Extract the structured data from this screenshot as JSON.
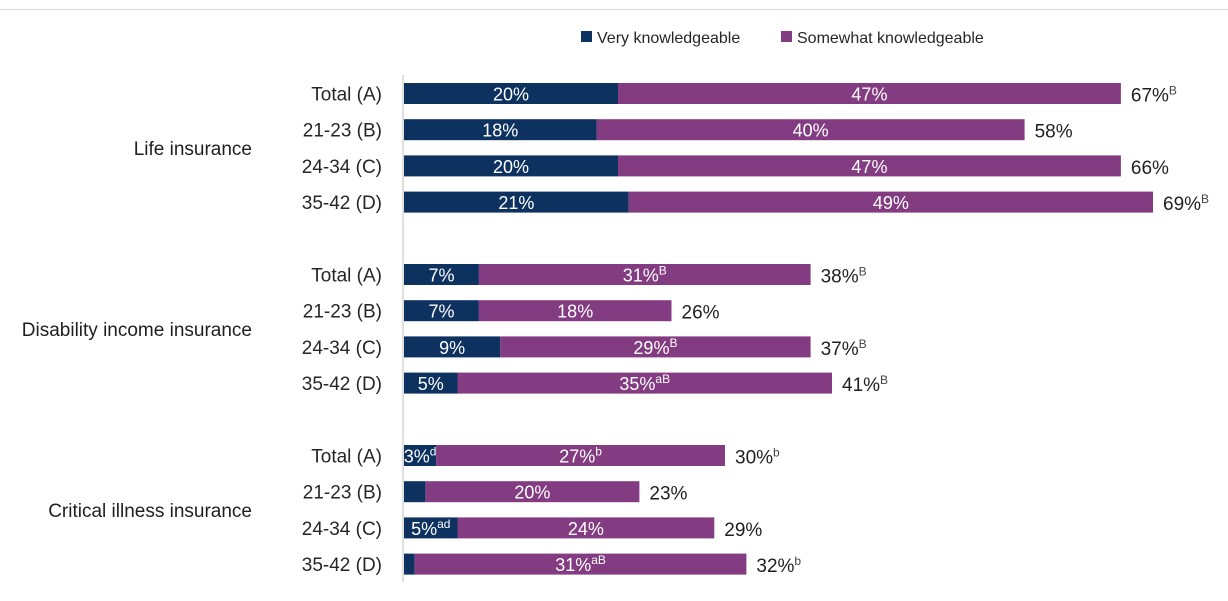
{
  "chart_data": {
    "type": "bar",
    "orientation": "horizontal",
    "stacked": true,
    "title": "",
    "xlabel": "",
    "ylabel": "",
    "xlim": [
      0,
      100
    ],
    "grid": false,
    "legend_position": "top-right",
    "colors": {
      "very": "#0d3260",
      "somewhat": "#833c82"
    },
    "legend": [
      "Very knowledgeable",
      "Somewhat knowledgeable"
    ],
    "groups": [
      {
        "label": "Life insurance",
        "rows": [
          {
            "label": "Total (A)",
            "very": 20,
            "very_label": "20%",
            "very_sup": "",
            "somewhat": 47,
            "somewhat_label": "47%",
            "somewhat_sup": "",
            "total_label": "67%",
            "total_sup": "B"
          },
          {
            "label": "21-23 (B)",
            "very": 18,
            "very_label": "18%",
            "very_sup": "",
            "somewhat": 40,
            "somewhat_label": "40%",
            "somewhat_sup": "",
            "total_label": "58%",
            "total_sup": ""
          },
          {
            "label": "24-34 (C)",
            "very": 20,
            "very_label": "20%",
            "very_sup": "",
            "somewhat": 47,
            "somewhat_label": "47%",
            "somewhat_sup": "",
            "total_label": "66%",
            "total_sup": ""
          },
          {
            "label": "35-42 (D)",
            "very": 21,
            "very_label": "21%",
            "very_sup": "",
            "somewhat": 49,
            "somewhat_label": "49%",
            "somewhat_sup": "",
            "total_label": "69%",
            "total_sup": "B"
          }
        ]
      },
      {
        "label": "Disability income insurance",
        "rows": [
          {
            "label": "Total (A)",
            "very": 7,
            "very_label": "7%",
            "very_sup": "",
            "somewhat": 31,
            "somewhat_label": "31%",
            "somewhat_sup": "B",
            "total_label": "38%",
            "total_sup": "B"
          },
          {
            "label": "21-23 (B)",
            "very": 7,
            "very_label": "7%",
            "very_sup": "",
            "somewhat": 18,
            "somewhat_label": "18%",
            "somewhat_sup": "",
            "total_label": "26%",
            "total_sup": ""
          },
          {
            "label": "24-34 (C)",
            "very": 9,
            "very_label": "9%",
            "very_sup": "",
            "somewhat": 29,
            "somewhat_label": "29%",
            "somewhat_sup": "B",
            "total_label": "37%",
            "total_sup": "B"
          },
          {
            "label": "35-42 (D)",
            "very": 5,
            "very_label": "5%",
            "very_sup": "",
            "somewhat": 35,
            "somewhat_label": "35%",
            "somewhat_sup": "aB",
            "total_label": "41%",
            "total_sup": "B"
          }
        ]
      },
      {
        "label": "Critical illness insurance",
        "rows": [
          {
            "label": "Total (A)",
            "very": 3,
            "very_label": "3%",
            "very_sup": "d",
            "somewhat": 27,
            "somewhat_label": "27%",
            "somewhat_sup": "b",
            "total_label": "30%",
            "total_sup": "b"
          },
          {
            "label": "21-23 (B)",
            "very": 2,
            "very_label": "",
            "very_sup": "",
            "somewhat": 20,
            "somewhat_label": "20%",
            "somewhat_sup": "",
            "total_label": "23%",
            "total_sup": ""
          },
          {
            "label": "24-34 (C)",
            "very": 5,
            "very_label": "5%",
            "very_sup": "ad",
            "somewhat": 24,
            "somewhat_label": "24%",
            "somewhat_sup": "",
            "total_label": "29%",
            "total_sup": ""
          },
          {
            "label": "35-42 (D)",
            "very": 1,
            "very_label": "",
            "very_sup": "",
            "somewhat": 31,
            "somewhat_label": "31%",
            "somewhat_sup": "aB",
            "total_label": "32%",
            "total_sup": "b"
          }
        ]
      }
    ]
  }
}
